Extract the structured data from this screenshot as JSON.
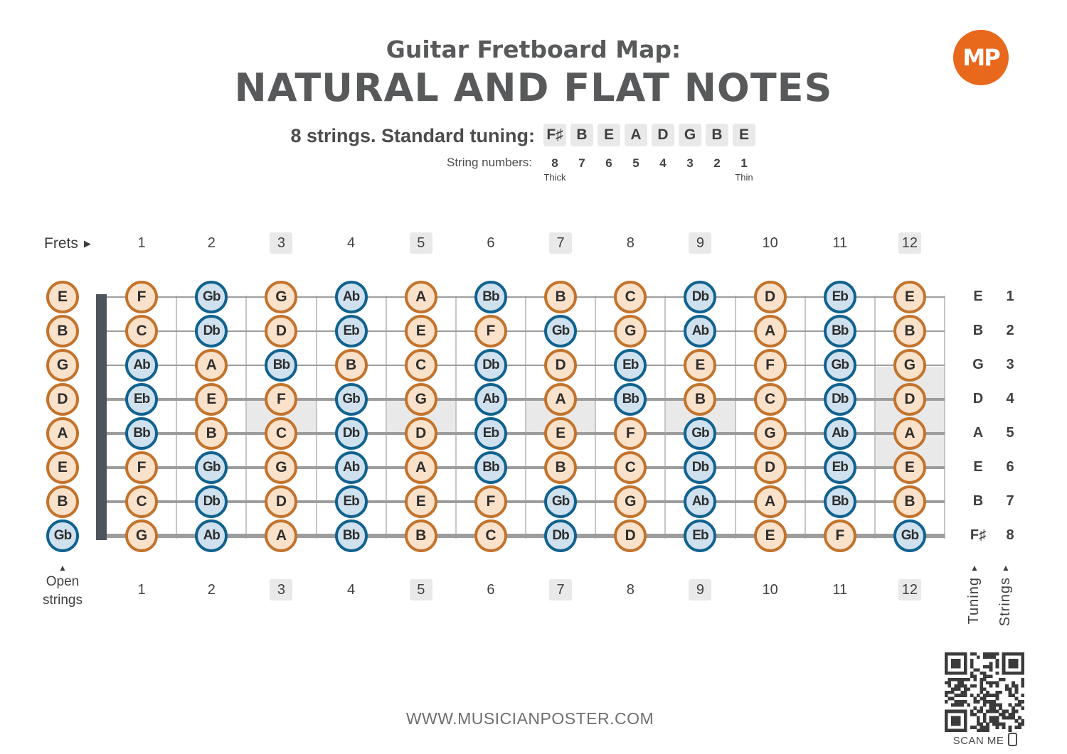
{
  "header": {
    "title_line1": "Guitar Fretboard Map:",
    "title_line2": "NATURAL AND FLAT NOTES",
    "subtitle": "8 strings. Standard tuning:",
    "tuning_chips": [
      "F♯",
      "B",
      "E",
      "A",
      "D",
      "G",
      "B",
      "E"
    ],
    "string_numbers_label": "String numbers:",
    "string_numbers": [
      "8",
      "7",
      "6",
      "5",
      "4",
      "3",
      "2",
      "1"
    ],
    "thick_label": "Thick",
    "thin_label": "Thin"
  },
  "logo": {
    "text": "MP"
  },
  "frets": {
    "label": "Frets",
    "arrow": "▶",
    "numbers": [
      "1",
      "2",
      "3",
      "4",
      "5",
      "6",
      "7",
      "8",
      "9",
      "10",
      "11",
      "12"
    ],
    "shaded": [
      3,
      5,
      7,
      9,
      12
    ],
    "single_inlay_frets": [
      3,
      5,
      7,
      9
    ],
    "double_inlay_fret": 12
  },
  "fretboard": {
    "open_strings_label": "Open strings",
    "open_strings_arrow": "▲",
    "tuning_axis_label": "Tuning",
    "strings_axis_label": "Strings",
    "axis_arrow": "▲",
    "strings": [
      {
        "open": "E",
        "tuning": "E",
        "number": "1",
        "notes": [
          "F",
          "Gb",
          "G",
          "Ab",
          "A",
          "Bb",
          "B",
          "C",
          "Db",
          "D",
          "Eb",
          "E"
        ]
      },
      {
        "open": "B",
        "tuning": "B",
        "number": "2",
        "notes": [
          "C",
          "Db",
          "D",
          "Eb",
          "E",
          "F",
          "Gb",
          "G",
          "Ab",
          "A",
          "Bb",
          "B"
        ]
      },
      {
        "open": "G",
        "tuning": "G",
        "number": "3",
        "notes": [
          "Ab",
          "A",
          "Bb",
          "B",
          "C",
          "Db",
          "D",
          "Eb",
          "E",
          "F",
          "Gb",
          "G"
        ]
      },
      {
        "open": "D",
        "tuning": "D",
        "number": "4",
        "notes": [
          "Eb",
          "E",
          "F",
          "Gb",
          "G",
          "Ab",
          "A",
          "Bb",
          "B",
          "C",
          "Db",
          "D"
        ]
      },
      {
        "open": "A",
        "tuning": "A",
        "number": "5",
        "notes": [
          "Bb",
          "B",
          "C",
          "Db",
          "D",
          "Eb",
          "E",
          "F",
          "Gb",
          "G",
          "Ab",
          "A"
        ]
      },
      {
        "open": "E",
        "tuning": "E",
        "number": "6",
        "notes": [
          "F",
          "Gb",
          "G",
          "Ab",
          "A",
          "Bb",
          "B",
          "C",
          "Db",
          "D",
          "Eb",
          "E"
        ]
      },
      {
        "open": "B",
        "tuning": "B",
        "number": "7",
        "notes": [
          "C",
          "Db",
          "D",
          "Eb",
          "E",
          "F",
          "Gb",
          "G",
          "Ab",
          "A",
          "Bb",
          "B"
        ]
      },
      {
        "open": "Gb",
        "tuning": "F♯",
        "number": "8",
        "notes": [
          "G",
          "Ab",
          "A",
          "Bb",
          "B",
          "C",
          "Db",
          "D",
          "Eb",
          "E",
          "F",
          "Gb"
        ]
      }
    ]
  },
  "qr": {
    "scan_label": "SCAN ME"
  },
  "footer": {
    "website": "WWW.MUSICIANPOSTER.COM"
  },
  "colors": {
    "accent": "#e8681c",
    "title": "#58595b",
    "natural_fill": "#f9e1ca",
    "natural_border": "#c3732c",
    "flat_fill": "#cfe1ee",
    "flat_border": "#11628f",
    "chip_bg": "#e9e9e9",
    "nut": "#4d545c",
    "string_line": "#9d9d9d",
    "fret_wire": "#c6c6c6",
    "inlay": "#e9e9e9"
  }
}
